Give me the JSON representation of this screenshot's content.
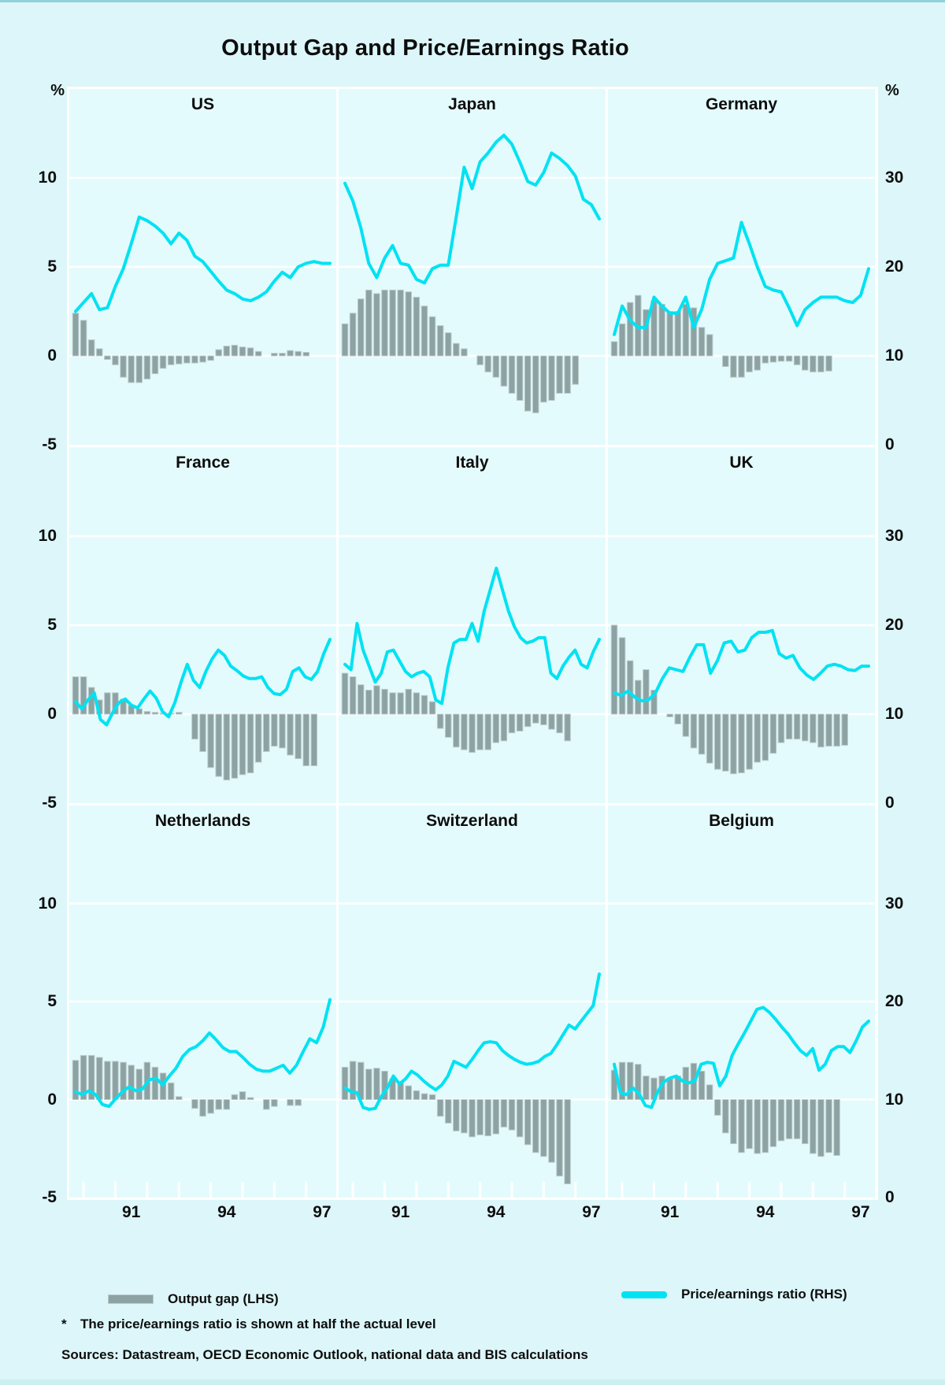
{
  "title": "Output Gap and Price/Earnings Ratio",
  "legend": {
    "bar_label": "Output gap (LHS)",
    "line_label": "Price/earnings ratio (RHS)"
  },
  "footnote_marker": "*",
  "footnote_text": "The price/earnings ratio is shown at half the actual level",
  "sources_text": "Sources: Datastream, OECD Economic Outlook, national data and BIS calculations",
  "colors": {
    "background": "#DCF6F9",
    "panel": "#E4FBFD",
    "bar": "#8DA2A3",
    "bar_edge": "#BCCBCB",
    "line": "#00E2F2",
    "grid": "#FFFFFF",
    "text": "#0d0d0d"
  },
  "axes": {
    "unit": "%",
    "left_ticks": [
      "10",
      "5",
      "0",
      "-5"
    ],
    "left_tick_values": [
      10,
      5,
      0,
      -5
    ],
    "right_ticks": [
      "30",
      "20",
      "10",
      "0"
    ],
    "x_year_labels": [
      "91",
      "94",
      "97"
    ]
  },
  "chart_data": {
    "type": "bar+line",
    "layout": "3x3 small multiples",
    "x_axis": {
      "start": "1989Q2",
      "end": "1997Q1",
      "frequency": "quarterly",
      "tick_labels": [
        "91",
        "94",
        "97"
      ]
    },
    "lhs_axis": {
      "label": "%",
      "ticks": [
        10,
        5,
        0,
        -5
      ],
      "series": "Output gap"
    },
    "rhs_axis": {
      "label": "%",
      "ticks": [
        30,
        20,
        10,
        0
      ],
      "series": "Price/earnings ratio (shown at half the actual level)"
    },
    "panels": [
      {
        "country": "US",
        "row": 0,
        "col": 0,
        "output_gap_lhs": [
          2.4,
          2.0,
          0.9,
          0.4,
          -0.2,
          -0.5,
          -1.2,
          -1.5,
          -1.5,
          -1.3,
          -1.0,
          -0.7,
          -0.5,
          -0.45,
          -0.4,
          -0.4,
          -0.35,
          -0.25,
          0.35,
          0.55,
          0.6,
          0.5,
          0.45,
          0.25,
          0.0,
          0.15,
          0.15,
          0.3,
          0.25,
          0.2,
          0.0,
          0.0
        ],
        "pe_ratio_rhs": [
          15,
          16,
          17,
          15.2,
          15.4,
          17.8,
          19.8,
          22.6,
          25.6,
          25.2,
          24.6,
          23.8,
          22.6,
          23.8,
          23,
          21.2,
          20.6,
          19.5,
          18.4,
          17.4,
          17,
          16.4,
          16.2,
          16.6,
          17.2,
          18.4,
          19.4,
          18.8,
          20,
          20.4,
          20.6,
          20.4,
          20.4
        ]
      },
      {
        "country": "Japan",
        "row": 0,
        "col": 1,
        "output_gap_lhs": [
          1.8,
          2.4,
          3.2,
          3.7,
          3.5,
          3.7,
          3.7,
          3.7,
          3.6,
          3.3,
          2.8,
          2.2,
          1.7,
          1.3,
          0.7,
          0.4,
          0,
          -0.5,
          -0.9,
          -1.2,
          -1.7,
          -2.1,
          -2.5,
          -3.1,
          -3.2,
          -2.6,
          -2.5,
          -2.1,
          -2.1,
          -1.6,
          0,
          0
        ],
        "pe_ratio_rhs": [
          29.4,
          27.4,
          24.4,
          20.4,
          18.8,
          21,
          22.4,
          20.4,
          20.2,
          18.6,
          18.2,
          19.8,
          20.2,
          20.2,
          25.6,
          31.2,
          28.8,
          31.8,
          32.8,
          34,
          34.8,
          33.8,
          31.8,
          29.6,
          29.2,
          30.6,
          32.8,
          32.2,
          31.4,
          30.2,
          27.6,
          27,
          25.4
        ]
      },
      {
        "country": "Germany",
        "row": 0,
        "col": 2,
        "output_gap_lhs": [
          0.8,
          1.8,
          3.0,
          3.4,
          2.6,
          3.1,
          2.9,
          2.5,
          2.5,
          2.9,
          2.7,
          1.6,
          1.2,
          0,
          -0.6,
          -1.2,
          -1.2,
          -0.9,
          -0.8,
          -0.4,
          -0.35,
          -0.3,
          -0.3,
          -0.5,
          -0.8,
          -0.9,
          -0.9,
          -0.85,
          0,
          0,
          0,
          0
        ],
        "pe_ratio_rhs": [
          12.4,
          15.6,
          14,
          13.2,
          13.2,
          16.6,
          15.6,
          14.8,
          14.8,
          16.6,
          13.2,
          15.2,
          18.6,
          20.4,
          20.7,
          21,
          25,
          22.6,
          20,
          17.8,
          17.4,
          17.2,
          15.4,
          13.4,
          15.2,
          16,
          16.6,
          16.6,
          16.6,
          16.2,
          16,
          16.8,
          19.8
        ]
      },
      {
        "country": "France",
        "row": 1,
        "col": 0,
        "output_gap_lhs": [
          2.1,
          2.1,
          1.5,
          0.8,
          1.2,
          1.2,
          0.85,
          0.5,
          0.3,
          0.15,
          0.1,
          0.05,
          0.05,
          0.1,
          0,
          -1.4,
          -2.1,
          -3.0,
          -3.5,
          -3.7,
          -3.6,
          -3.4,
          -3.3,
          -2.7,
          -2.1,
          -1.8,
          -1.9,
          -2.3,
          -2.5,
          -2.9,
          -2.9,
          0
        ],
        "pe_ratio_rhs": [
          11.4,
          10.6,
          11.6,
          12.4,
          9.4,
          8.8,
          10.2,
          11.3,
          11.7,
          11,
          10.7,
          11.7,
          12.6,
          11.8,
          10.3,
          9.7,
          11.3,
          13.6,
          15.6,
          13.8,
          13,
          14.8,
          16.2,
          17.2,
          16.6,
          15.4,
          14.9,
          14.3,
          14,
          14,
          14.2,
          13,
          12.3,
          12.2,
          12.8,
          14.8,
          15.2,
          14.2,
          13.9,
          14.8,
          16.8,
          18.4
        ]
      },
      {
        "country": "Italy",
        "row": 1,
        "col": 1,
        "output_gap_lhs": [
          2.3,
          2.1,
          1.65,
          1.35,
          1.6,
          1.4,
          1.2,
          1.2,
          1.4,
          1.2,
          1.05,
          0.7,
          -0.8,
          -1.3,
          -1.85,
          -2.0,
          -2.15,
          -2.0,
          -2.0,
          -1.6,
          -1.5,
          -1.05,
          -0.95,
          -0.7,
          -0.5,
          -0.6,
          -0.85,
          -1.05,
          -1.5,
          0,
          0,
          0
        ],
        "pe_ratio_rhs": [
          15.6,
          15,
          20.2,
          17.2,
          15.4,
          13.6,
          14.6,
          17,
          17.2,
          16,
          14.8,
          14.2,
          14.6,
          14.8,
          14.2,
          11.6,
          11.2,
          15.2,
          18,
          18.4,
          18.4,
          20.2,
          18.2,
          21.6,
          24,
          26.4,
          24,
          21.6,
          19.8,
          18.6,
          18,
          18.2,
          18.6,
          18.6,
          14.6,
          14,
          15.4,
          16.4,
          17.2,
          15.6,
          15.2,
          17,
          18.4
        ]
      },
      {
        "country": "UK",
        "row": 1,
        "col": 2,
        "output_gap_lhs": [
          5.0,
          4.3,
          3.0,
          1.9,
          2.5,
          1.35,
          0,
          -0.15,
          -0.55,
          -1.25,
          -1.9,
          -2.25,
          -2.75,
          -3.1,
          -3.2,
          -3.35,
          -3.3,
          -3.1,
          -2.7,
          -2.6,
          -2.2,
          -1.6,
          -1.4,
          -1.4,
          -1.5,
          -1.6,
          -1.85,
          -1.8,
          -1.8,
          -1.75,
          0,
          0
        ],
        "pe_ratio_rhs": [
          12.4,
          12.1,
          12.6,
          11.9,
          11.5,
          11.6,
          12.4,
          14,
          15.2,
          15,
          14.8,
          16.4,
          17.8,
          17.8,
          14.6,
          16,
          18,
          18.2,
          17,
          17.2,
          18.6,
          19.2,
          19.2,
          19.4,
          16.8,
          16.3,
          16.6,
          15.2,
          14.4,
          13.9,
          14.6,
          15.4,
          15.6,
          15.4,
          15,
          14.9,
          15.4,
          15.4
        ]
      },
      {
        "country": "Netherlands",
        "row": 2,
        "col": 0,
        "output_gap_lhs": [
          2.0,
          2.25,
          2.25,
          2.15,
          1.95,
          1.95,
          1.9,
          1.75,
          1.55,
          1.9,
          1.65,
          1.35,
          0.85,
          0.15,
          0,
          -0.45,
          -0.85,
          -0.7,
          -0.5,
          -0.5,
          0.25,
          0.4,
          0.1,
          0,
          -0.5,
          -0.35,
          0,
          -0.3,
          -0.3,
          0,
          0,
          0
        ],
        "pe_ratio_rhs": [
          10.8,
          10.5,
          10.9,
          10.5,
          9.5,
          9.3,
          10.1,
          10.8,
          11.3,
          10.9,
          11.1,
          12,
          12.2,
          11.5,
          12.4,
          13.2,
          14.4,
          15.1,
          15.4,
          16,
          16.8,
          16.1,
          15.3,
          14.9,
          14.9,
          14.3,
          13.6,
          13.1,
          12.9,
          12.9,
          13.2,
          13.5,
          12.7,
          13.5,
          14.9,
          16.2,
          15.8,
          17.4,
          20.2
        ]
      },
      {
        "country": "Switzerland",
        "row": 2,
        "col": 1,
        "output_gap_lhs": [
          1.65,
          1.95,
          1.9,
          1.55,
          1.6,
          1.45,
          1.05,
          0.85,
          0.7,
          0.45,
          0.3,
          0.25,
          -0.85,
          -1.2,
          -1.6,
          -1.7,
          -1.9,
          -1.8,
          -1.85,
          -1.75,
          -1.4,
          -1.55,
          -1.9,
          -2.3,
          -2.7,
          -2.9,
          -3.2,
          -3.9,
          -4.3,
          0,
          0,
          0
        ],
        "pe_ratio_rhs": [
          11.2,
          10.8,
          10.7,
          9.2,
          9,
          9.1,
          10.3,
          11.2,
          12.4,
          11.6,
          12.1,
          12.9,
          12.5,
          11.9,
          11.4,
          11,
          11.5,
          12.4,
          13.9,
          13.6,
          13.3,
          14.1,
          15,
          15.8,
          15.9,
          15.8,
          15,
          14.5,
          14.1,
          13.8,
          13.6,
          13.7,
          13.9,
          14.4,
          14.7,
          15.6,
          16.6,
          17.6,
          17.2,
          18,
          18.8,
          19.6,
          22.8
        ]
      },
      {
        "country": "Belgium",
        "row": 2,
        "col": 2,
        "output_gap_lhs": [
          1.5,
          1.9,
          1.9,
          1.8,
          1.2,
          1.1,
          1.2,
          1.05,
          1.2,
          1.65,
          1.85,
          1.45,
          0.75,
          -0.8,
          -1.7,
          -2.25,
          -2.7,
          -2.5,
          -2.75,
          -2.7,
          -2.4,
          -2.1,
          -2.0,
          -2.0,
          -2.25,
          -2.75,
          -2.9,
          -2.7,
          -2.85,
          0,
          0,
          0
        ],
        "pe_ratio_rhs": [
          13.6,
          10.7,
          10.5,
          11.2,
          10.6,
          9.4,
          9.2,
          10.8,
          11.8,
          12.2,
          12.4,
          11.9,
          11.7,
          11.9,
          13.6,
          13.8,
          13.7,
          11.4,
          12.4,
          14.5,
          15.7,
          16.8,
          18,
          19.2,
          19.4,
          18.9,
          18.2,
          17.4,
          16.7,
          15.8,
          15,
          14.5,
          15.2,
          13,
          13.6,
          15,
          15.4,
          15.4,
          14.8,
          16,
          17.4,
          18
        ]
      }
    ]
  }
}
